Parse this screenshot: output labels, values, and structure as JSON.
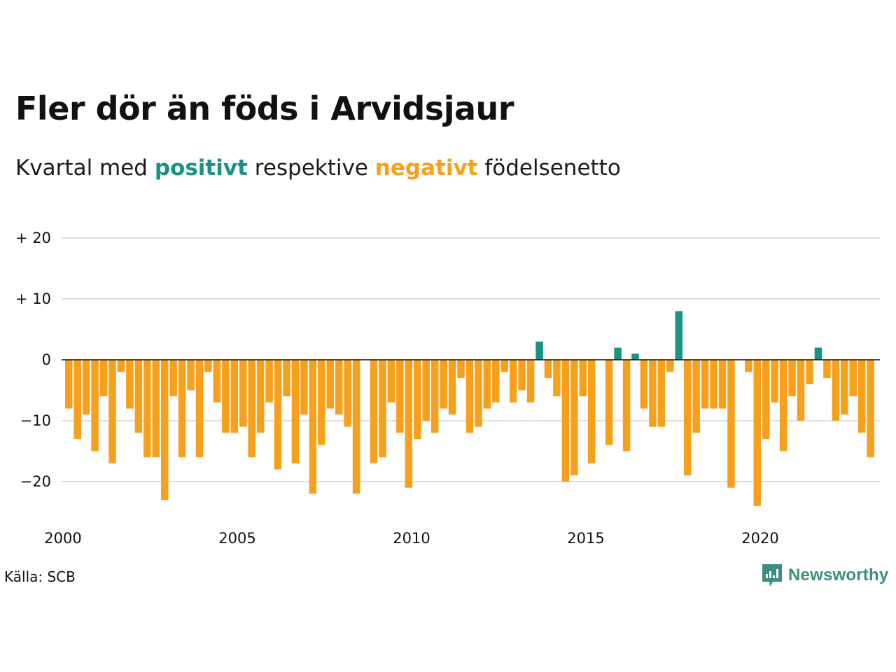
{
  "title": "Fler dör än föds i Arvidsjaur",
  "subtitle": {
    "prefix": "Kvartal med",
    "positive_word": "positivt",
    "middle": "respektive",
    "negative_word": "negativt",
    "suffix": "födelsenetto"
  },
  "source": "Källa: SCB",
  "logo_text": "Newsworthy",
  "colors": {
    "positive": "#1a9383",
    "negative": "#f7a01c",
    "grid": "#dddddd",
    "baseline": "#111111",
    "logo": "#3a8f80"
  },
  "chart_data": {
    "type": "bar",
    "title": "Fler dör än föds i Arvidsjaur",
    "xlabel": "",
    "ylabel": "",
    "ylim": [
      -25,
      20
    ],
    "grid": true,
    "y_ticks": [
      {
        "value": 20,
        "label": "+ 20"
      },
      {
        "value": 10,
        "label": "+ 10"
      },
      {
        "value": 0,
        "label": "0"
      },
      {
        "value": -10,
        "label": "−10"
      },
      {
        "value": -20,
        "label": "−20"
      }
    ],
    "x_ticks": [
      "2000",
      "2005",
      "2010",
      "2015",
      "2020"
    ],
    "start_year": 2000,
    "period": "quarter",
    "values": [
      -8,
      -13,
      -9,
      -15,
      -6,
      -17,
      -2,
      -8,
      -12,
      -16,
      -16,
      -23,
      -6,
      -16,
      -5,
      -16,
      -2,
      -7,
      -12,
      -12,
      -11,
      -16,
      -12,
      -7,
      -18,
      -6,
      -17,
      -9,
      -22,
      -14,
      -8,
      -9,
      -11,
      -22,
      0,
      -17,
      -16,
      -7,
      -12,
      -21,
      -13,
      -10,
      -12,
      -8,
      -9,
      -3,
      -12,
      -11,
      -8,
      -7,
      -2,
      -7,
      -5,
      -7,
      3,
      -3,
      -6,
      -20,
      -19,
      -6,
      -17,
      0,
      -14,
      2,
      -15,
      1,
      -8,
      -11,
      -11,
      -2,
      8,
      -19,
      -12,
      -8,
      -8,
      -8,
      -21,
      0,
      -2,
      -24,
      -13,
      -7,
      -15,
      -6,
      -10,
      -4,
      2,
      -3,
      -10,
      -9,
      -6,
      -12,
      -16
    ]
  }
}
